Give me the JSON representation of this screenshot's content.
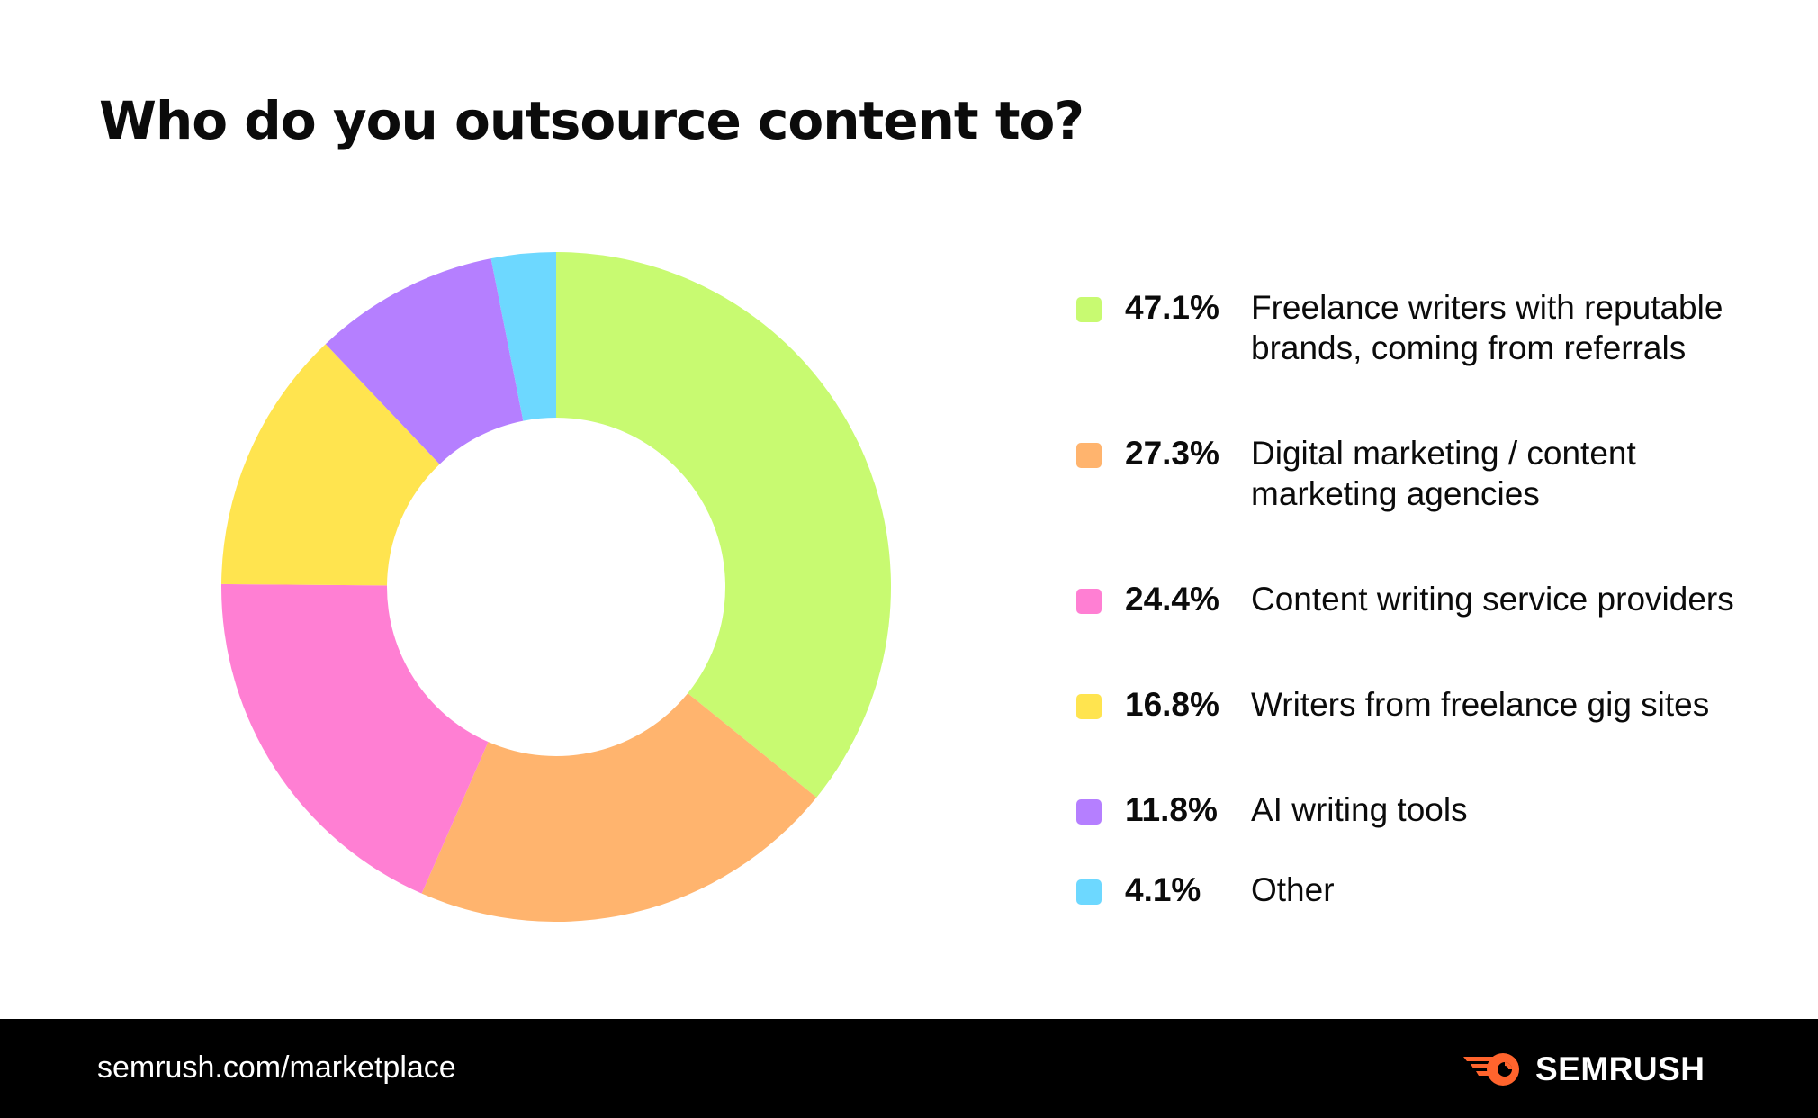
{
  "chart_data": {
    "type": "pie",
    "title": "Who do you outsource content to?",
    "categories": [
      "Freelance writers with reputable brands, coming from referrals",
      "Digital marketing / content marketing agencies",
      "Content writing service providers",
      "Writers from freelance gig sites",
      "AI writing tools",
      "Other"
    ],
    "values": [
      47.1,
      27.3,
      24.4,
      16.8,
      11.8,
      4.1
    ],
    "value_labels": [
      "47.1%",
      "27.3%",
      "24.4%",
      "16.8%",
      "11.8%",
      "4.1%"
    ],
    "colors": [
      "#c8fa71",
      "#ffb46e",
      "#ff7fd3",
      "#ffe44f",
      "#b57fff",
      "#6dd8ff"
    ],
    "donut": true,
    "legend_position": "right"
  },
  "footer": {
    "url": "semrush.com/marketplace",
    "brand": "SEMRUSH",
    "brand_icon": "semrush-fireball-icon",
    "background": "#000000"
  }
}
